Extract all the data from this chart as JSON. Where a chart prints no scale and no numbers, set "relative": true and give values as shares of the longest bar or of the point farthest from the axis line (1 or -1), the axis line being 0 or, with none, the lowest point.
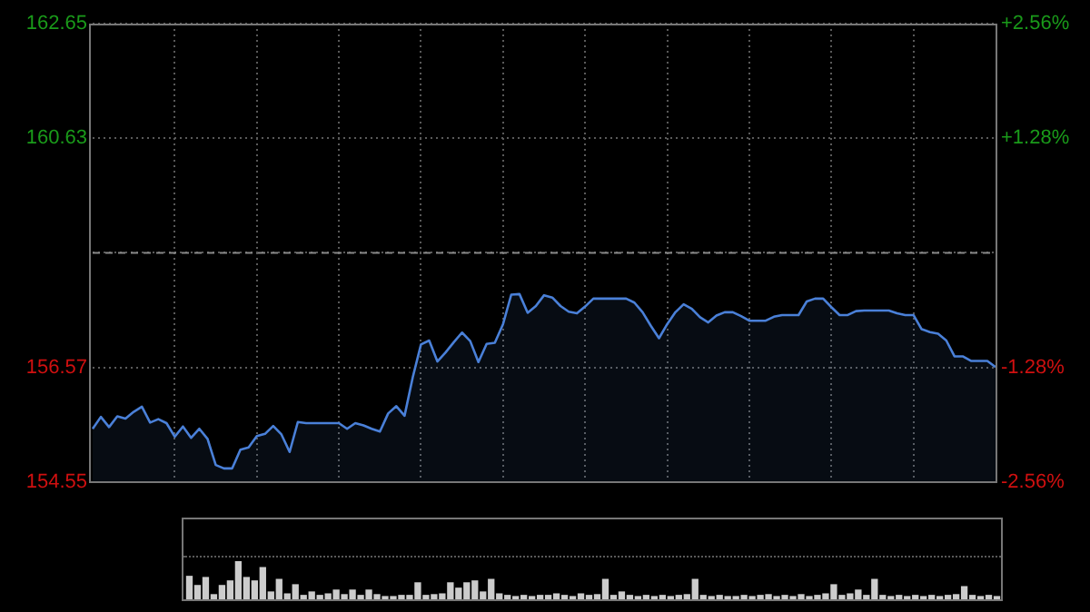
{
  "chart_data": [
    {
      "type": "area",
      "categories": [
        null,
        null,
        null,
        null,
        null,
        null,
        null,
        null,
        null,
        null,
        null,
        null,
        null,
        null,
        null,
        null,
        null,
        null,
        null,
        null,
        null,
        null,
        null,
        null,
        null,
        null,
        null,
        null,
        null,
        null,
        null,
        null,
        null,
        null,
        null,
        null,
        null,
        null,
        null,
        null,
        null,
        null,
        null,
        null,
        null,
        null,
        null,
        null,
        null,
        null,
        null,
        null,
        null,
        null,
        null,
        null,
        null,
        null,
        null,
        null,
        null,
        null,
        null,
        null,
        null,
        null,
        null,
        null,
        null,
        null,
        null,
        null,
        null,
        null,
        null,
        null,
        null,
        null,
        null,
        null,
        null,
        null,
        null,
        null,
        null,
        null,
        null,
        null,
        null,
        null,
        null,
        null,
        null,
        null,
        null,
        null,
        null,
        null,
        null,
        null,
        null,
        null,
        null,
        null,
        null,
        null,
        null,
        null,
        null,
        null,
        null
      ],
      "series": [
        {
          "color": "#4a80d8",
          "values": [
            155.49,
            155.7,
            155.52,
            155.71,
            155.67,
            155.79,
            155.88,
            155.6,
            155.66,
            155.59,
            155.35,
            155.53,
            155.33,
            155.49,
            155.31,
            154.85,
            154.79,
            154.79,
            155.12,
            155.16,
            155.36,
            155.4,
            155.54,
            155.39,
            155.08,
            155.61,
            155.59,
            155.59,
            155.59,
            155.59,
            155.59,
            155.49,
            155.59,
            155.55,
            155.49,
            155.44,
            155.76,
            155.89,
            155.72,
            156.4,
            156.98,
            157.05,
            156.68,
            156.84,
            157.02,
            157.19,
            157.04,
            156.67,
            156.99,
            157.01,
            157.34,
            157.86,
            157.87,
            157.54,
            157.66,
            157.85,
            157.81,
            157.66,
            157.56,
            157.53,
            157.65,
            157.79,
            157.79,
            157.79,
            157.79,
            157.79,
            157.72,
            157.55,
            157.31,
            157.09,
            157.34,
            157.55,
            157.69,
            157.61,
            157.46,
            157.37,
            157.49,
            157.55,
            157.55,
            157.48,
            157.4,
            157.4,
            157.4,
            157.47,
            157.5,
            157.5,
            157.5,
            157.74,
            157.79,
            157.79,
            157.64,
            157.5,
            157.5,
            157.57,
            157.58,
            157.58,
            157.58,
            157.58,
            157.53,
            157.5,
            157.5,
            157.25,
            157.2,
            157.17,
            157.05,
            156.77,
            156.77,
            156.69,
            156.69,
            156.69,
            156.58
          ]
        }
      ],
      "ylim": [
        154.55,
        162.65
      ],
      "yticks": [
        154.55,
        156.57,
        {
          "value": 158.6,
          "label": null
        },
        160.63,
        162.65
      ],
      "y2lim": [
        -2.56,
        2.56
      ],
      "y2ticks": [
        {
          "value": -2.56,
          "label": "-2.56%"
        },
        {
          "value": -1.28,
          "label": "-1.28%"
        },
        {
          "value": 1.28,
          "label": "+1.28%"
        },
        {
          "value": 2.56,
          "label": "+2.56%"
        }
      ],
      "grid": true,
      "tick_labels": "y",
      "marker": "none",
      "ref_lines": [
        {
          "axis": "y",
          "value": 158.6,
          "color": "#888888",
          "line_style": "dashed"
        }
      ]
    },
    {
      "type": "bar",
      "relative": true,
      "color": "#cccccc",
      "categories": [
        null,
        null,
        null,
        null,
        null,
        null,
        null,
        null,
        null,
        null,
        null,
        null,
        null,
        null,
        null,
        null,
        null,
        null,
        null,
        null,
        null,
        null,
        null,
        null,
        null,
        null,
        null,
        null,
        null,
        null,
        null,
        null,
        null,
        null,
        null,
        null,
        null,
        null,
        null,
        null,
        null,
        null,
        null,
        null,
        null,
        null,
        null,
        null,
        null,
        null,
        null,
        null,
        null,
        null,
        null,
        null,
        null,
        null,
        null,
        null,
        null,
        null,
        null,
        null,
        null,
        null,
        null,
        null,
        null,
        null,
        null,
        null,
        null,
        null,
        null,
        null,
        null,
        null,
        null,
        null,
        null,
        null,
        null,
        null,
        null,
        null,
        null,
        null,
        null,
        null,
        null,
        null,
        null,
        null,
        null,
        null,
        null,
        null,
        null,
        null
      ],
      "values": [
        0.6,
        0.36,
        0.57,
        0.12,
        0.36,
        0.48,
        1,
        0.57,
        0.48,
        0.83,
        0.19,
        0.52,
        0.14,
        0.38,
        0.1,
        0.19,
        0.1,
        0.14,
        0.24,
        0.12,
        0.24,
        0.1,
        0.24,
        0.12,
        0.07,
        0.07,
        0.1,
        0.1,
        0.43,
        0.1,
        0.12,
        0.14,
        0.43,
        0.29,
        0.43,
        0.48,
        0.19,
        0.52,
        0.14,
        0.1,
        0.07,
        0.1,
        0.07,
        0.1,
        0.1,
        0.14,
        0.1,
        0.07,
        0.14,
        0.1,
        0.12,
        0.52,
        0.1,
        0.19,
        0.1,
        0.07,
        0.1,
        0.07,
        0.1,
        0.07,
        0.1,
        0.12,
        0.52,
        0.1,
        0.07,
        0.1,
        0.07,
        0.07,
        0.1,
        0.07,
        0.1,
        0.12,
        0.07,
        0.1,
        0.07,
        0.12,
        0.07,
        0.1,
        0.14,
        0.38,
        0.1,
        0.14,
        0.24,
        0.1,
        0.52,
        0.1,
        0.07,
        0.1,
        0.07,
        0.1,
        0.07,
        0.1,
        0.07,
        0.1,
        0.12,
        0.33,
        0.1,
        0.07,
        0.1,
        0.07
      ]
    }
  ]
}
